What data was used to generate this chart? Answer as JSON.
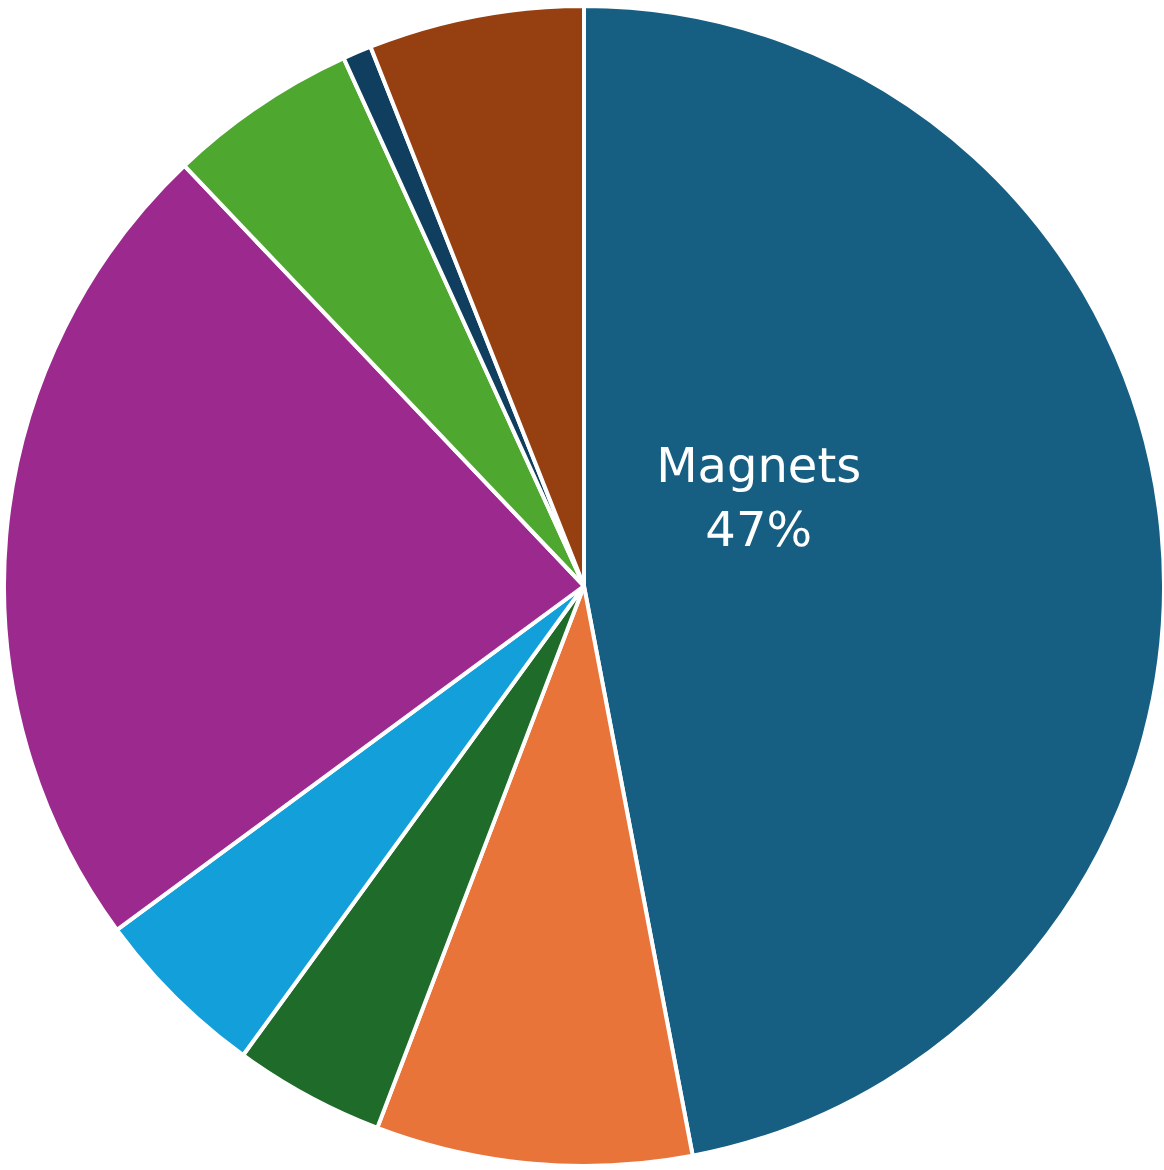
{
  "chart_data": {
    "type": "pie",
    "categories": [
      "Magnets",
      null,
      null,
      null,
      null,
      null,
      null,
      null
    ],
    "values": [
      47,
      8.8,
      4.2,
      4.9,
      23,
      5.3,
      0.8,
      6
    ],
    "value_labels": [
      "47%",
      null,
      null,
      null,
      null,
      null,
      null,
      null
    ],
    "colors": [
      "#175f82",
      "#e8743a",
      "#1e6b2a",
      "#139fd9",
      "#9c2a8e",
      "#4ea72e",
      "#0f3e5e",
      "#964011"
    ],
    "legend": false
  }
}
